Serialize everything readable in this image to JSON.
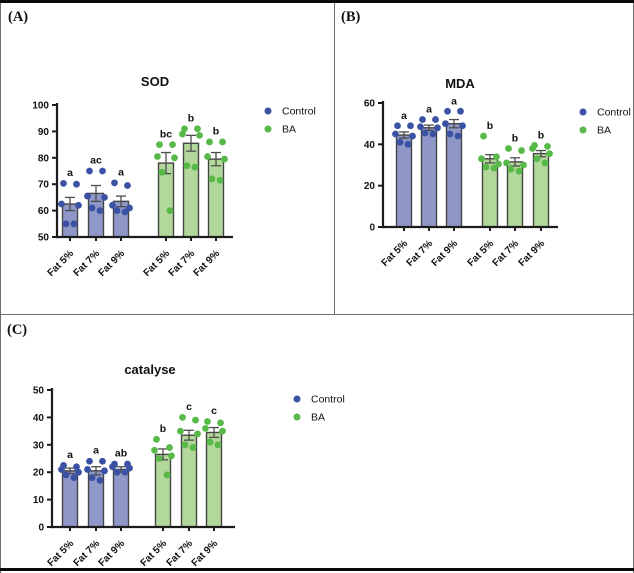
{
  "colors": {
    "control_dot": "#3b52a4",
    "control_bar_fill": "#8f97c9",
    "ba_dot": "#57b947",
    "ba_bar_fill": "#b3d89b",
    "bar_stroke": "#454545",
    "error_bar": "#4d4d4d",
    "axis": "#1c1c1c",
    "text": "#111111"
  },
  "chart_data": [
    {
      "type": "bar",
      "panel_label": "(A)",
      "title": "SOD",
      "ylim": [
        50,
        100
      ],
      "yticks": [
        50,
        60,
        70,
        80,
        90,
        100
      ],
      "legend": [
        "Control",
        "BA"
      ],
      "legend_position": "right-top",
      "categories": [
        "Fat 5%",
        "Fat 7%",
        "Fat 9%",
        "Fat 5%",
        "Fat 7%",
        "Fat 9%"
      ],
      "bars": [
        {
          "group": "Control",
          "category": "Fat 5%",
          "mean": 62.5,
          "sem": 2.5,
          "sig": "a",
          "points": [
            70.3,
            70,
            62.5,
            62,
            55,
            55
          ]
        },
        {
          "group": "Control",
          "category": "Fat 7%",
          "mean": 66.5,
          "sem": 3,
          "sig": "ac",
          "points": [
            75,
            75,
            65.5,
            65,
            61,
            60
          ]
        },
        {
          "group": "Control",
          "category": "Fat 9%",
          "mean": 63.5,
          "sem": 2,
          "sig": "a",
          "points": [
            70.5,
            69.5,
            62,
            61,
            60,
            59.5
          ]
        },
        {
          "group": "BA",
          "category": "Fat 5%",
          "mean": 78,
          "sem": 4,
          "sig": "bc",
          "points": [
            85,
            85,
            80.5,
            80,
            74.5,
            60
          ]
        },
        {
          "group": "BA",
          "category": "Fat 7%",
          "mean": 85.5,
          "sem": 3,
          "sig": "b",
          "points": [
            91,
            91,
            89,
            88.5,
            77,
            76.5
          ]
        },
        {
          "group": "BA",
          "category": "Fat 9%",
          "mean": 79.5,
          "sem": 2.5,
          "sig": "b",
          "points": [
            86,
            86,
            80.5,
            79.5,
            72,
            71.5
          ]
        }
      ]
    },
    {
      "type": "bar",
      "panel_label": "(B)",
      "title": "MDA",
      "ylim": [
        0,
        60
      ],
      "yticks": [
        0,
        20,
        40,
        60
      ],
      "legend": [
        "Control",
        "BA"
      ],
      "legend_position": "right-top",
      "categories": [
        "Fat 5%",
        "Fat 7%",
        "Fat 9%",
        "Fat 5%",
        "Fat 7%",
        "Fat 9%"
      ],
      "bars": [
        {
          "group": "Control",
          "category": "Fat 5%",
          "mean": 44.5,
          "sem": 1.5,
          "sig": "a",
          "points": [
            49,
            49,
            45,
            44,
            41,
            40
          ]
        },
        {
          "group": "Control",
          "category": "Fat 7%",
          "mean": 48,
          "sem": 1.3,
          "sig": "a",
          "points": [
            52,
            52,
            48.5,
            48,
            45.5,
            45
          ]
        },
        {
          "group": "Control",
          "category": "Fat 9%",
          "mean": 50,
          "sem": 2,
          "sig": "a",
          "points": [
            56,
            56,
            50,
            49,
            45,
            44
          ]
        },
        {
          "group": "BA",
          "category": "Fat 5%",
          "mean": 33,
          "sem": 2,
          "sig": "b",
          "points": [
            44,
            34,
            33,
            30.5,
            29,
            28.5
          ]
        },
        {
          "group": "BA",
          "category": "Fat 7%",
          "mean": 31.5,
          "sem": 2,
          "sig": "b",
          "points": [
            38,
            37,
            31,
            30,
            28,
            27
          ]
        },
        {
          "group": "BA",
          "category": "Fat 9%",
          "mean": 35.5,
          "sem": 1.5,
          "sig": "b",
          "points": [
            39.5,
            39,
            38,
            35.5,
            33,
            31
          ]
        }
      ]
    },
    {
      "type": "bar",
      "panel_label": "(C)",
      "title": "catalyse",
      "ylim": [
        0,
        50
      ],
      "yticks": [
        0,
        10,
        20,
        30,
        40,
        50
      ],
      "legend": [
        "Control",
        "BA"
      ],
      "legend_position": "right-top",
      "categories": [
        "Fat 5%",
        "Fat 7%",
        "Fat 9%",
        "Fat 5%",
        "Fat 7%",
        "Fat 9%"
      ],
      "bars": [
        {
          "group": "Control",
          "category": "Fat 5%",
          "mean": 20.5,
          "sem": 1,
          "sig": "a",
          "points": [
            22.5,
            22,
            21,
            20,
            19,
            18
          ]
        },
        {
          "group": "Control",
          "category": "Fat 7%",
          "mean": 20.5,
          "sem": 1.5,
          "sig": "a",
          "points": [
            24,
            24,
            21,
            20.5,
            18,
            17
          ]
        },
        {
          "group": "Control",
          "category": "Fat 9%",
          "mean": 21,
          "sem": 1,
          "sig": "ab",
          "points": [
            23,
            23,
            22,
            21.5,
            20,
            20
          ]
        },
        {
          "group": "BA",
          "category": "Fat 5%",
          "mean": 26.5,
          "sem": 2,
          "sig": "b",
          "points": [
            32,
            29,
            28,
            26,
            25,
            19
          ]
        },
        {
          "group": "BA",
          "category": "Fat 7%",
          "mean": 33.5,
          "sem": 1.8,
          "sig": "c",
          "points": [
            40,
            39,
            35,
            34,
            30,
            29
          ]
        },
        {
          "group": "BA",
          "category": "Fat 9%",
          "mean": 34.5,
          "sem": 1.8,
          "sig": "c",
          "points": [
            38.5,
            38,
            36,
            35,
            31,
            30
          ]
        }
      ]
    }
  ]
}
